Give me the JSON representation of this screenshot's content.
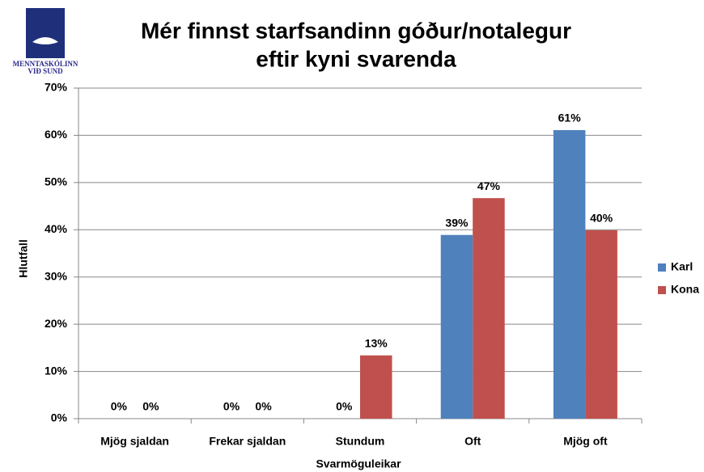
{
  "logo": {
    "line1": "MENNTASKÓLINN",
    "line2": "VIÐ SUND"
  },
  "chart_data": {
    "type": "bar",
    "title": [
      "Mér finnst starfsandinn góður/notalegur",
      "eftir kyni svarenda"
    ],
    "x_label": "Svarmöguleikar",
    "y_label": "Hlutfall",
    "categories": [
      "Mjög sjaldan",
      "Frekar sjaldan",
      "Stundum",
      "Oft",
      "Mjög oft"
    ],
    "series": [
      {
        "name": "Karl",
        "color": "#4f81bd",
        "values": [
          0,
          0,
          0,
          38.9,
          61.1
        ],
        "value_labels": [
          "0%",
          "0%",
          "0%",
          "39%",
          "61%"
        ]
      },
      {
        "name": "Kona",
        "color": "#c0504d",
        "values": [
          0,
          0,
          13.4,
          46.7,
          39.9
        ],
        "value_labels": [
          "0%",
          "0%",
          "13%",
          "47%",
          "40%"
        ]
      }
    ],
    "ylim": [
      0,
      70
    ],
    "yticks": [
      {
        "value": 0,
        "label": "0%"
      },
      {
        "value": 10,
        "label": "10%"
      },
      {
        "value": 20,
        "label": "20%"
      },
      {
        "value": 30,
        "label": "30%"
      },
      {
        "value": 40,
        "label": "40%"
      },
      {
        "value": 50,
        "label": "50%"
      },
      {
        "value": 60,
        "label": "60%"
      },
      {
        "value": 70,
        "label": "70%"
      }
    ],
    "grid": true,
    "legend": "right"
  }
}
